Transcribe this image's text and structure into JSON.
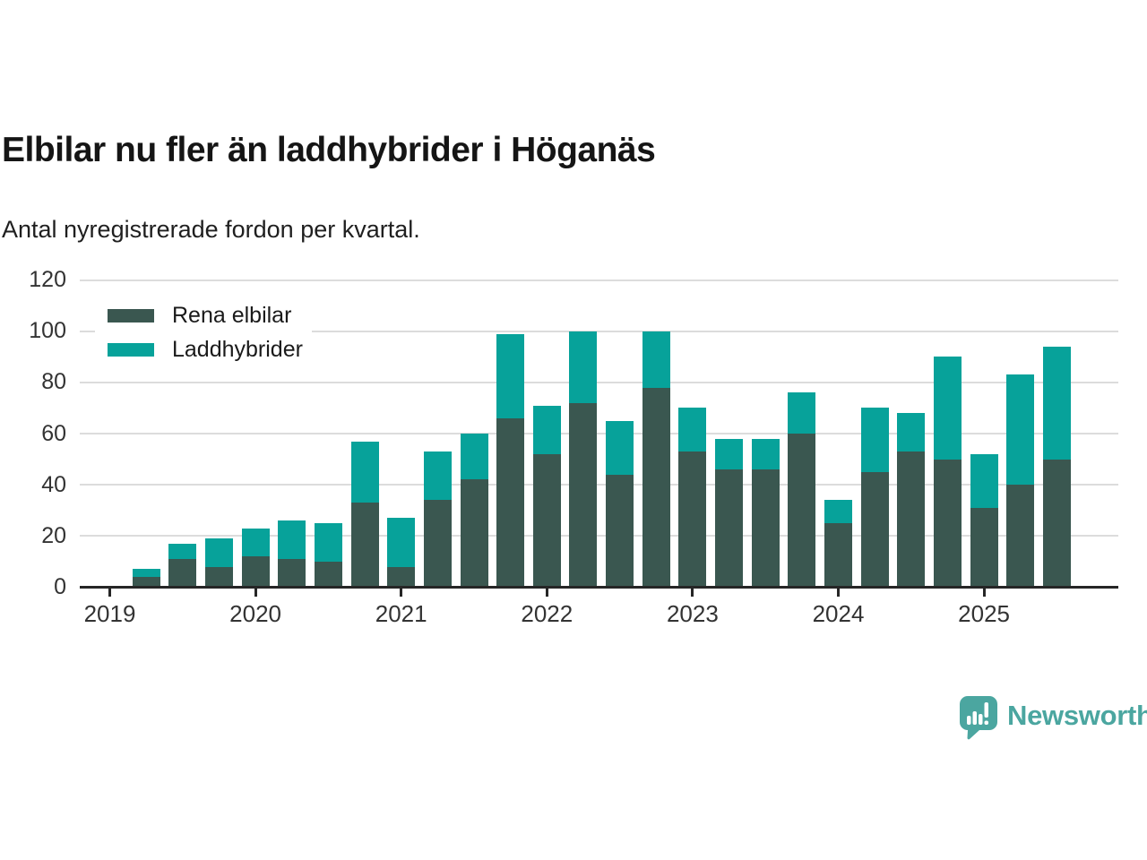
{
  "header": {
    "title": "Elbilar nu fler än laddhybrider i Höganäs",
    "subtitle": "Antal nyregistrerade fordon per kvartal."
  },
  "colors": {
    "rena_elbilar": "#3a5750",
    "laddhybrider": "#07a29a",
    "grid": "#dcdcdc",
    "axis": "#262626",
    "tick_text": "#333333",
    "brand": "#4ba6a0"
  },
  "legend": [
    {
      "label": "Rena elbilar",
      "color_key": "rena_elbilar"
    },
    {
      "label": "Laddhybrider",
      "color_key": "laddhybrider"
    }
  ],
  "chart_data": {
    "type": "bar",
    "stacked": true,
    "title": "Elbilar nu fler än laddhybrider i Höganäs",
    "subtitle": "Antal nyregistrerade fordon per kvartal.",
    "x": [
      "2019 Q2",
      "2019 Q3",
      "2019 Q4",
      "2020 Q1",
      "2020 Q2",
      "2020 Q3",
      "2020 Q4",
      "2021 Q1",
      "2021 Q2",
      "2021 Q3",
      "2021 Q4",
      "2022 Q1",
      "2022 Q2",
      "2022 Q3",
      "2022 Q4",
      "2023 Q1",
      "2023 Q2",
      "2023 Q3",
      "2023 Q4",
      "2024 Q1",
      "2024 Q2",
      "2024 Q3",
      "2024 Q4",
      "2025 Q1",
      "2025 Q2",
      "2025 Q3"
    ],
    "series": [
      {
        "name": "Rena elbilar",
        "values": [
          4,
          11,
          8,
          12,
          11,
          10,
          33,
          8,
          34,
          42,
          66,
          52,
          72,
          44,
          78,
          53,
          46,
          46,
          60,
          25,
          45,
          53,
          50,
          31,
          40,
          50
        ]
      },
      {
        "name": "Laddhybrider",
        "values": [
          3,
          6,
          11,
          11,
          15,
          15,
          24,
          19,
          19,
          18,
          33,
          19,
          28,
          21,
          22,
          17,
          12,
          12,
          16,
          9,
          25,
          15,
          40,
          21,
          43,
          44
        ]
      }
    ],
    "ylim": [
      0,
      120
    ],
    "yticks": [
      0,
      20,
      40,
      60,
      80,
      100,
      120
    ],
    "xticks": [
      "2019",
      "2020",
      "2021",
      "2022",
      "2023",
      "2024",
      "2025"
    ],
    "grid": true,
    "legend_position": "top-left"
  },
  "branding": {
    "logo_text": "Newsworthy"
  }
}
